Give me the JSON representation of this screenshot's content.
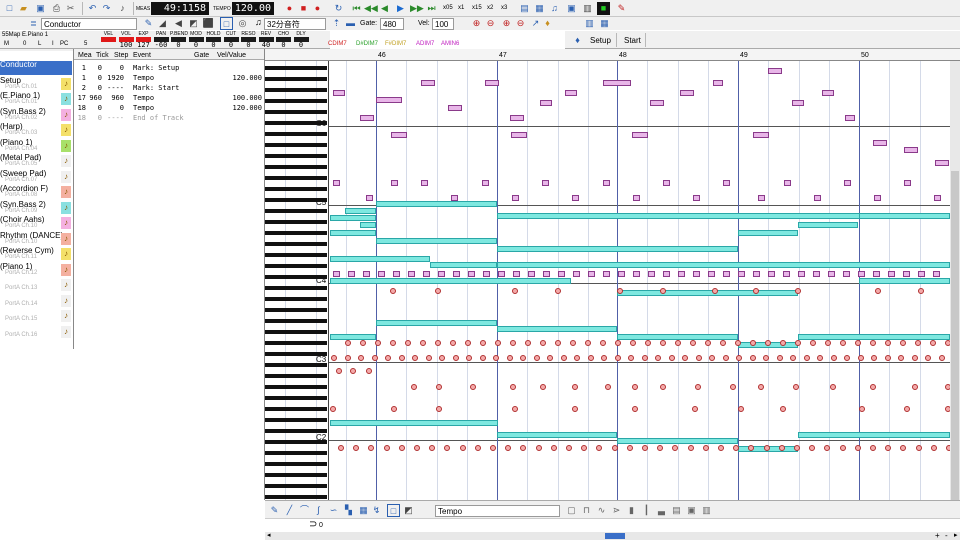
{
  "toolbar1": {
    "meas_label": "MEAS",
    "position": "49:1158",
    "tempo_label": "TEMPO",
    "tempo": "120.00",
    "speeds": [
      "x05",
      "x1",
      "x15",
      "x2",
      "x3"
    ]
  },
  "toolbar2": {
    "track_select": "Conductor",
    "quantize": "32分音符",
    "gate_label": "Gate:",
    "gate": "480",
    "vel_label": "Vel:",
    "vel": "100"
  },
  "mixer": {
    "track_name": "55Map E.Piano 1",
    "mode": "M",
    "col0": "0",
    "col1": "L",
    "col2": "I",
    "pc_label": "PC",
    "pc": "5",
    "channels": [
      {
        "label": "VEL",
        "value": "",
        "red": true
      },
      {
        "label": "VOL",
        "value": "100",
        "red": true
      },
      {
        "label": "EXP",
        "value": "127",
        "red": true
      },
      {
        "label": "PAN",
        "value": "-60",
        "red": false
      },
      {
        "label": "P.BEND",
        "value": "0",
        "red": false
      },
      {
        "label": "MOD",
        "value": "0",
        "red": false
      },
      {
        "label": "HOLD",
        "value": "0",
        "red": false
      },
      {
        "label": "CUT",
        "value": "0",
        "red": false
      },
      {
        "label": "RESO",
        "value": "0",
        "red": false
      },
      {
        "label": "REV",
        "value": "40",
        "red": false
      },
      {
        "label": "CHO",
        "value": "0",
        "red": false
      },
      {
        "label": "DLY",
        "value": "0",
        "red": false
      }
    ]
  },
  "chords": [
    "CDIM7",
    "D#DIM7",
    "F#DIM7",
    "ADIM7",
    "AMIN6"
  ],
  "markers": {
    "setup": "Setup",
    "start": "Start"
  },
  "tracks": [
    {
      "name": "Conductor",
      "port": ""
    },
    {
      "name": "Setup",
      "port": "PortA  Ch.01"
    },
    {
      "name": "(E.Piano 1)",
      "port": "PortA  Ch.01"
    },
    {
      "name": "(Syn.Bass 2)",
      "port": "PortA  Ch.02"
    },
    {
      "name": "(Harp)",
      "port": "PortA  Ch.03"
    },
    {
      "name": "(Piano 1)",
      "port": "PortA  Ch.04"
    },
    {
      "name": "(Metal Pad)",
      "port": "PortA  Ch.05"
    },
    {
      "name": "(Sweep Pad)",
      "port": "PortA  Ch.07"
    },
    {
      "name": "(Accordion F)",
      "port": "PortA  Ch.08"
    },
    {
      "name": "(Syn.Bass 2)",
      "port": "PortA  Ch.09"
    },
    {
      "name": "(Choir Aahs)",
      "port": "PortA  Ch.10"
    },
    {
      "name": "Rhythm (DANCE)",
      "port": "PortA  Ch.10"
    },
    {
      "name": "(Reverse Cym)",
      "port": "PortA  Ch.11"
    },
    {
      "name": "(Piano 1)",
      "port": "PortA  Ch.12"
    },
    {
      "name": "",
      "port": "PortA  Ch.13"
    },
    {
      "name": "",
      "port": "PortA  Ch.14"
    },
    {
      "name": "",
      "port": "PortA  Ch.15"
    },
    {
      "name": "",
      "port": "PortA  Ch.16"
    }
  ],
  "event_list": {
    "headers": [
      "Mea",
      "Tick",
      "Step",
      "Event",
      "Gate",
      "Vel/Value"
    ],
    "rows": [
      {
        "mea": "1",
        "tick": "0",
        "step": "0",
        "event": "Mark: Setup",
        "gate": "",
        "value": ""
      },
      {
        "mea": "1",
        "tick": "0",
        "step": "1920",
        "event": "Tempo",
        "gate": "",
        "value": "120.000"
      },
      {
        "mea": "2",
        "tick": "0",
        "step": "----",
        "event": "Mark: Start",
        "gate": "",
        "value": ""
      },
      {
        "mea": "17",
        "tick": "960",
        "step": "960",
        "event": "Tempo",
        "gate": "",
        "value": "100.000"
      },
      {
        "mea": "18",
        "tick": "0",
        "step": "0",
        "event": "Tempo",
        "gate": "",
        "value": "120.000"
      },
      {
        "mea": "18",
        "tick": "0",
        "step": "----",
        "event": "End of Track",
        "gate": "",
        "value": ""
      }
    ]
  },
  "piano_roll": {
    "measures": [
      "46",
      "47",
      "48",
      "49",
      "50"
    ],
    "octaves": [
      "C6",
      "C5",
      "C4",
      "C3",
      "C2"
    ]
  },
  "bottom": {
    "controller": "Tempo"
  },
  "colors": {
    "teal": "#7ee8e0",
    "pink": "#e8b6e8",
    "red": "#f4a9a9",
    "measure_line": "#5060a8"
  }
}
